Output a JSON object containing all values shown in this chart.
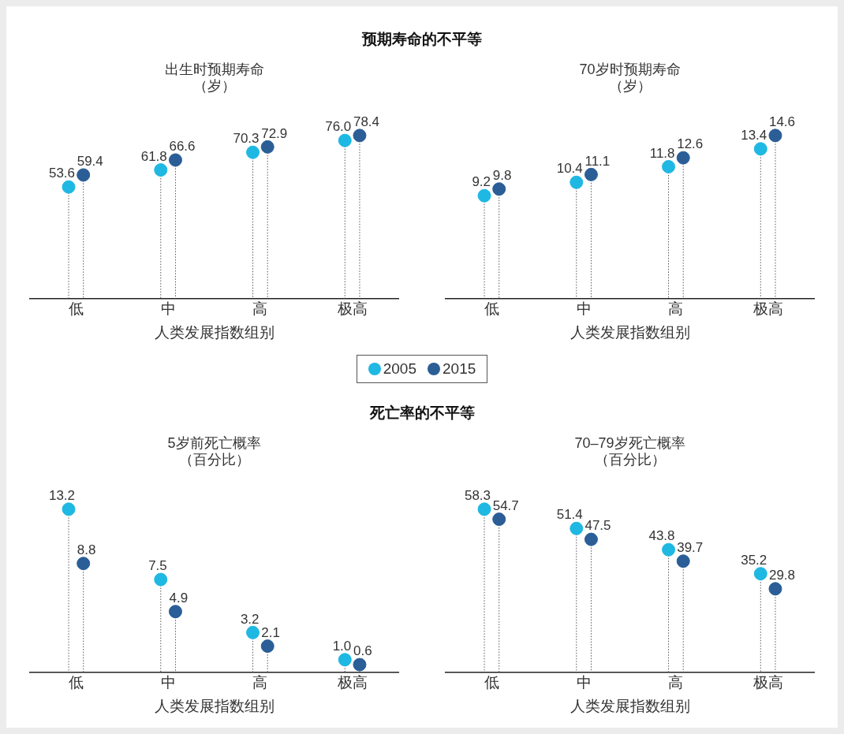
{
  "chart_data": [
    {
      "type": "lollipop",
      "annotations": [
        "预期寿命的不平等"
      ],
      "title": "出生时预期寿命（岁）",
      "xlabel": "人类发展指数组别",
      "categories": [
        "低",
        "中",
        "高",
        "极高"
      ],
      "series": [
        {
          "name": "2005",
          "color": "#1fb8e3",
          "values": [
            53.6,
            61.8,
            70.3,
            76.0
          ],
          "value_labels": [
            "53.6",
            "61.8",
            "70.3",
            "76.0"
          ]
        },
        {
          "name": "2015",
          "color": "#2b5e97",
          "values": [
            59.4,
            66.6,
            72.9,
            78.4
          ],
          "value_labels": [
            "59.4",
            "66.6",
            "72.9",
            "78.4"
          ]
        }
      ],
      "marker": "circle",
      "line_style": "dotted",
      "tick_labels": "x",
      "legend": "bottom"
    },
    {
      "type": "lollipop",
      "title": "70岁时预期寿命（岁）",
      "xlabel": "人类发展指数组别",
      "categories": [
        "低",
        "中",
        "高",
        "极高"
      ],
      "series": [
        {
          "name": "2005",
          "color": "#1fb8e3",
          "values": [
            9.2,
            10.4,
            11.8,
            13.4
          ],
          "value_labels": [
            "9.2",
            "10.4",
            "11.8",
            "13.4"
          ]
        },
        {
          "name": "2015",
          "color": "#2b5e97",
          "values": [
            9.8,
            11.1,
            12.6,
            14.6
          ],
          "value_labels": [
            "9.8",
            "11.1",
            "12.6",
            "14.6"
          ]
        }
      ],
      "marker": "circle",
      "line_style": "dotted",
      "tick_labels": "x"
    },
    {
      "type": "lollipop",
      "annotations": [
        "死亡率的不平等"
      ],
      "title": "5岁前死亡概率（百分比）",
      "xlabel": "人类发展指数组别",
      "categories": [
        "低",
        "中",
        "高",
        "极高"
      ],
      "series": [
        {
          "name": "2005",
          "color": "#1fb8e3",
          "values": [
            13.2,
            7.5,
            3.2,
            1.0
          ],
          "value_labels": [
            "13.2",
            "7.5",
            "3.2",
            "1.0"
          ]
        },
        {
          "name": "2015",
          "color": "#2b5e97",
          "values": [
            8.8,
            4.9,
            2.1,
            0.6
          ],
          "value_labels": [
            "8.8",
            "4.9",
            "2.1",
            "0.6"
          ]
        }
      ],
      "marker": "circle",
      "line_style": "dotted",
      "tick_labels": "x"
    },
    {
      "type": "lollipop",
      "title": "70–79岁死亡概率（百分比）",
      "xlabel": "人类发展指数组别",
      "categories": [
        "低",
        "中",
        "高",
        "极高"
      ],
      "series": [
        {
          "name": "2005",
          "color": "#1fb8e3",
          "values": [
            58.3,
            51.4,
            43.8,
            35.2
          ],
          "value_labels": [
            "58.3",
            "51.4",
            "43.8",
            "35.2"
          ]
        },
        {
          "name": "2015",
          "color": "#2b5e97",
          "values": [
            54.7,
            47.5,
            39.7,
            29.8
          ],
          "value_labels": [
            "54.7",
            "47.5",
            "39.7",
            "29.8"
          ]
        }
      ],
      "marker": "circle",
      "line_style": "dotted",
      "tick_labels": "x"
    }
  ]
}
